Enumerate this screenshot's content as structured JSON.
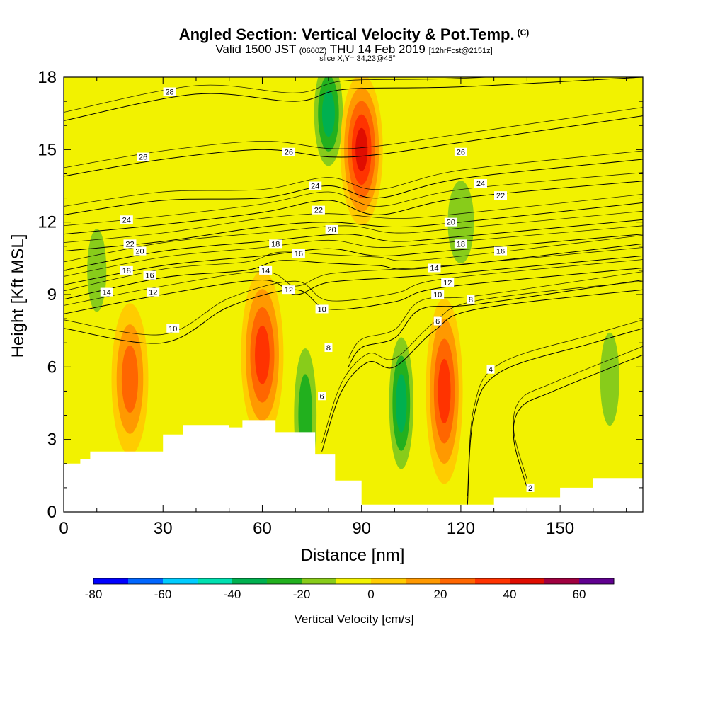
{
  "header": {
    "title": "Angled Section: Vertical Velocity & Pot.Temp.",
    "title_suffix": "(C)",
    "valid_prefix": "Valid 1500 JST",
    "valid_zulu": "(0600Z)",
    "valid_date": "THU 14 Feb 2019",
    "valid_fcst": "[12hrFcst@2151z]",
    "slice": "slice X,Y= 34,23@45°"
  },
  "chart_data": {
    "type": "heatmap",
    "title": "Angled Section: Vertical Velocity & Pot.Temp.",
    "xlabel": "Distance [nm]",
    "ylabel": "Height [Kft MSL]",
    "xlim": [
      0,
      175
    ],
    "ylim": [
      0,
      18
    ],
    "x_ticks": [
      0,
      30,
      60,
      90,
      120,
      150
    ],
    "y_ticks": [
      0,
      3,
      6,
      9,
      12,
      15,
      18
    ],
    "colorbar": {
      "label": "Vertical Velocity [cm/s]",
      "ticks": [
        -80,
        -60,
        -40,
        -20,
        0,
        20,
        40,
        60
      ],
      "bins": [
        -80,
        -70,
        -60,
        -50,
        -40,
        -30,
        -20,
        -10,
        0,
        10,
        20,
        30,
        40,
        50,
        60,
        70
      ],
      "colors": [
        "#0000ff",
        "#0066ff",
        "#00ccff",
        "#00e0b0",
        "#00b050",
        "#22b01e",
        "#88cc1a",
        "#f2f200",
        "#ffcc00",
        "#ff9900",
        "#ff6600",
        "#ff3300",
        "#e00d00",
        "#a00040",
        "#600090"
      ]
    },
    "velocity_features": [
      {
        "x": 10,
        "height": 10,
        "w": -25
      },
      {
        "x": 20,
        "height": 5.5,
        "w": 35
      },
      {
        "x": 60,
        "height": 6.5,
        "w": 40
      },
      {
        "x": 73,
        "height": 4,
        "w": -35
      },
      {
        "x": 80,
        "height": 16.5,
        "w": -40
      },
      {
        "x": 90,
        "height": 15,
        "w": 50
      },
      {
        "x": 102,
        "height": 4.5,
        "w": -45
      },
      {
        "x": 115,
        "height": 5,
        "w": 40
      },
      {
        "x": 120,
        "height": 12,
        "w": -25
      },
      {
        "x": 165,
        "height": 5.5,
        "w": -20
      }
    ],
    "terrain": [
      {
        "x": 0,
        "height": 2.0
      },
      {
        "x": 5,
        "height": 2.2
      },
      {
        "x": 8,
        "height": 2.5
      },
      {
        "x": 30,
        "height": 3.2
      },
      {
        "x": 36,
        "height": 3.6
      },
      {
        "x": 50,
        "height": 3.5
      },
      {
        "x": 54,
        "height": 3.8
      },
      {
        "x": 64,
        "height": 3.3
      },
      {
        "x": 76,
        "height": 2.4
      },
      {
        "x": 82,
        "height": 1.3
      },
      {
        "x": 90,
        "height": 0.3
      },
      {
        "x": 130,
        "height": 0.6
      },
      {
        "x": 150,
        "height": 1.0
      },
      {
        "x": 160,
        "height": 1.4
      },
      {
        "x": 175,
        "height": 1.6
      }
    ],
    "isentropes": [
      {
        "theta": 2,
        "points": [
          [
            140,
            1.0
          ],
          [
            136,
            3.0
          ],
          [
            138,
            4.3
          ],
          [
            148,
            5.0
          ],
          [
            175,
            6.5
          ]
        ]
      },
      {
        "theta": 4,
        "points": [
          [
            122,
            0.3
          ],
          [
            124,
            4.0
          ],
          [
            132,
            5.8
          ],
          [
            160,
            7.0
          ],
          [
            175,
            7.6
          ]
        ]
      },
      {
        "theta": 6,
        "points": [
          [
            78,
            2.5
          ],
          [
            84,
            5.0
          ],
          [
            92,
            6.2
          ],
          [
            100,
            6.0
          ],
          [
            112,
            7.5
          ],
          [
            125,
            8.4
          ],
          [
            175,
            9.2
          ]
        ]
      },
      {
        "theta": 8,
        "points": [
          [
            86,
            6.0
          ],
          [
            90,
            6.8
          ],
          [
            100,
            7.2
          ],
          [
            108,
            8.4
          ],
          [
            125,
            8.6
          ],
          [
            175,
            9.6
          ]
        ]
      },
      {
        "theta": 10,
        "points": [
          [
            0,
            7.6
          ],
          [
            30,
            7.0
          ],
          [
            50,
            8.5
          ],
          [
            70,
            9.2
          ],
          [
            80,
            8.4
          ],
          [
            100,
            8.7
          ],
          [
            115,
            9.3
          ],
          [
            175,
            10.1
          ]
        ]
      },
      {
        "theta": 12,
        "points": [
          [
            0,
            8.2
          ],
          [
            30,
            9.0
          ],
          [
            60,
            9.6
          ],
          [
            70,
            9.0
          ],
          [
            80,
            9.5
          ],
          [
            100,
            9.7
          ],
          [
            120,
            9.9
          ],
          [
            175,
            10.6
          ]
        ]
      },
      {
        "theta": 14,
        "points": [
          [
            0,
            8.8
          ],
          [
            30,
            9.7
          ],
          [
            55,
            10.0
          ],
          [
            65,
            10.4
          ],
          [
            80,
            10.3
          ],
          [
            95,
            10.2
          ],
          [
            110,
            10.1
          ],
          [
            175,
            11.1
          ]
        ]
      },
      {
        "theta": 16,
        "points": [
          [
            0,
            9.4
          ],
          [
            30,
            10.2
          ],
          [
            60,
            10.6
          ],
          [
            80,
            10.9
          ],
          [
            95,
            10.6
          ],
          [
            115,
            10.8
          ],
          [
            175,
            11.5
          ]
        ]
      },
      {
        "theta": 18,
        "points": [
          [
            0,
            10.0
          ],
          [
            30,
            10.8
          ],
          [
            60,
            11.2
          ],
          [
            85,
            11.5
          ],
          [
            100,
            11.2
          ],
          [
            120,
            11.4
          ],
          [
            175,
            12.1
          ]
        ]
      },
      {
        "theta": 20,
        "points": [
          [
            0,
            10.8
          ],
          [
            30,
            11.2
          ],
          [
            60,
            11.8
          ],
          [
            80,
            12.0
          ],
          [
            100,
            11.8
          ],
          [
            120,
            12.0
          ],
          [
            175,
            12.8
          ]
        ]
      },
      {
        "theta": 22,
        "points": [
          [
            0,
            11.5
          ],
          [
            30,
            11.9
          ],
          [
            60,
            12.4
          ],
          [
            80,
            12.9
          ],
          [
            95,
            12.3
          ],
          [
            120,
            13.0
          ],
          [
            175,
            13.7
          ]
        ]
      },
      {
        "theta": 24,
        "points": [
          [
            0,
            12.3
          ],
          [
            30,
            12.9
          ],
          [
            60,
            13.0
          ],
          [
            80,
            13.5
          ],
          [
            95,
            13.0
          ],
          [
            120,
            13.8
          ],
          [
            175,
            14.6
          ]
        ]
      },
      {
        "theta": 26,
        "points": [
          [
            0,
            13.9
          ],
          [
            30,
            14.6
          ],
          [
            60,
            15.0
          ],
          [
            80,
            14.7
          ],
          [
            95,
            14.8
          ],
          [
            120,
            15.3
          ],
          [
            175,
            16.4
          ]
        ]
      },
      {
        "theta": 28,
        "points": [
          [
            0,
            16.2
          ],
          [
            40,
            17.3
          ],
          [
            70,
            17.0
          ],
          [
            85,
            17.5
          ],
          [
            120,
            17.6
          ],
          [
            175,
            18.0
          ]
        ]
      }
    ],
    "contour_labels": [
      {
        "x": 32,
        "height": 17.4,
        "text": "28"
      },
      {
        "x": 24,
        "height": 14.7,
        "text": "26"
      },
      {
        "x": 68,
        "height": 14.9,
        "text": "26"
      },
      {
        "x": 120,
        "height": 14.9,
        "text": "26"
      },
      {
        "x": 76,
        "height": 13.5,
        "text": "24"
      },
      {
        "x": 126,
        "height": 13.6,
        "text": "24"
      },
      {
        "x": 19,
        "height": 12.1,
        "text": "24"
      },
      {
        "x": 77,
        "height": 12.5,
        "text": "22"
      },
      {
        "x": 132,
        "height": 13.1,
        "text": "22"
      },
      {
        "x": 20,
        "height": 11.1,
        "text": "22"
      },
      {
        "x": 81,
        "height": 11.7,
        "text": "20"
      },
      {
        "x": 117,
        "height": 12.0,
        "text": "20"
      },
      {
        "x": 23,
        "height": 10.8,
        "text": "20"
      },
      {
        "x": 64,
        "height": 11.1,
        "text": "18"
      },
      {
        "x": 120,
        "height": 11.1,
        "text": "18"
      },
      {
        "x": 19,
        "height": 10.0,
        "text": "18"
      },
      {
        "x": 71,
        "height": 10.7,
        "text": "16"
      },
      {
        "x": 132,
        "height": 10.8,
        "text": "16"
      },
      {
        "x": 26,
        "height": 9.8,
        "text": "16"
      },
      {
        "x": 61,
        "height": 10.0,
        "text": "14"
      },
      {
        "x": 112,
        "height": 10.1,
        "text": "14"
      },
      {
        "x": 13,
        "height": 9.1,
        "text": "14"
      },
      {
        "x": 68,
        "height": 9.2,
        "text": "12"
      },
      {
        "x": 116,
        "height": 9.5,
        "text": "12"
      },
      {
        "x": 27,
        "height": 9.1,
        "text": "12"
      },
      {
        "x": 78,
        "height": 8.4,
        "text": "10"
      },
      {
        "x": 113,
        "height": 9.0,
        "text": "10"
      },
      {
        "x": 33,
        "height": 7.6,
        "text": "10"
      },
      {
        "x": 80,
        "height": 6.8,
        "text": "8"
      },
      {
        "x": 123,
        "height": 8.8,
        "text": "8"
      },
      {
        "x": 113,
        "height": 7.9,
        "text": "6"
      },
      {
        "x": 78,
        "height": 4.8,
        "text": "6"
      },
      {
        "x": 129,
        "height": 5.9,
        "text": "4"
      },
      {
        "x": 141,
        "height": 1.0,
        "text": "2"
      }
    ]
  }
}
